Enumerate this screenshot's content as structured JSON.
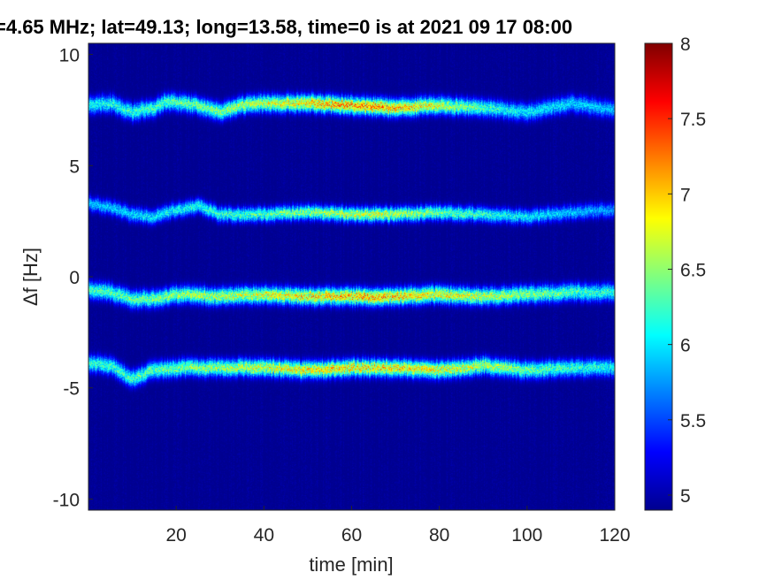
{
  "chart_data": {
    "type": "heatmap",
    "title": "=4.65 MHz;  lat=49.13; long=13.58, time=0 is at 2021 09 17 08:00",
    "xlabel": "time [min]",
    "ylabel": "Δf [Hz]",
    "xlim": [
      0,
      120
    ],
    "ylim": [
      -10.5,
      10.5
    ],
    "x_ticks": [
      20,
      40,
      60,
      80,
      100,
      120
    ],
    "x_tick_labels": [
      "20",
      "40",
      "60",
      "80",
      "100",
      "120"
    ],
    "y_ticks": [
      10,
      5,
      0,
      -5,
      -10
    ],
    "y_tick_labels": [
      "10",
      "5",
      "0",
      "-5",
      "-10"
    ],
    "colorbar": {
      "colormap": "jet",
      "clim": [
        4.9,
        8
      ],
      "ticks": [
        8,
        7.5,
        7,
        6.5,
        6,
        5.5,
        5
      ],
      "tick_labels": [
        "8",
        "7.5",
        "7",
        "6.5",
        "6",
        "5.5",
        "5"
      ]
    },
    "background_value": 4.95,
    "series": [
      {
        "center_hz": [
          [
            0,
            7.7
          ],
          [
            5,
            7.8
          ],
          [
            10,
            7.4
          ],
          [
            15,
            7.6
          ],
          [
            18,
            7.9
          ],
          [
            25,
            7.7
          ],
          [
            30,
            7.4
          ],
          [
            35,
            7.7
          ],
          [
            40,
            7.8
          ],
          [
            50,
            7.8
          ],
          [
            60,
            7.7
          ],
          [
            70,
            7.6
          ],
          [
            80,
            7.7
          ],
          [
            90,
            7.6
          ],
          [
            95,
            7.5
          ],
          [
            100,
            7.4
          ],
          [
            105,
            7.6
          ],
          [
            110,
            7.8
          ],
          [
            120,
            7.5
          ]
        ],
        "peak": [
          [
            0,
            6.4
          ],
          [
            20,
            6.7
          ],
          [
            40,
            7.1
          ],
          [
            55,
            7.6
          ],
          [
            65,
            7.7
          ],
          [
            75,
            7.4
          ],
          [
            85,
            6.9
          ],
          [
            95,
            6.4
          ],
          [
            120,
            6.1
          ]
        ],
        "width_hz": 0.35
      },
      {
        "center_hz": [
          [
            0,
            3.3
          ],
          [
            5,
            3.1
          ],
          [
            10,
            2.8
          ],
          [
            15,
            2.7
          ],
          [
            20,
            3.0
          ],
          [
            25,
            3.2
          ],
          [
            30,
            2.8
          ],
          [
            40,
            2.8
          ],
          [
            50,
            2.9
          ],
          [
            60,
            2.8
          ],
          [
            70,
            2.8
          ],
          [
            80,
            2.9
          ],
          [
            90,
            2.8
          ],
          [
            100,
            2.7
          ],
          [
            110,
            2.9
          ],
          [
            120,
            3.0
          ]
        ],
        "peak": [
          [
            0,
            6.1
          ],
          [
            20,
            6.4
          ],
          [
            40,
            6.7
          ],
          [
            55,
            7.0
          ],
          [
            65,
            7.2
          ],
          [
            80,
            6.8
          ],
          [
            95,
            6.4
          ],
          [
            120,
            6.0
          ]
        ],
        "width_hz": 0.3
      },
      {
        "center_hz": [
          [
            0,
            -0.6
          ],
          [
            5,
            -0.7
          ],
          [
            10,
            -1.0
          ],
          [
            15,
            -1.0
          ],
          [
            20,
            -0.8
          ],
          [
            30,
            -0.9
          ],
          [
            40,
            -0.8
          ],
          [
            50,
            -0.9
          ],
          [
            60,
            -0.9
          ],
          [
            70,
            -0.9
          ],
          [
            80,
            -0.8
          ],
          [
            90,
            -0.9
          ],
          [
            100,
            -0.8
          ],
          [
            110,
            -0.7
          ],
          [
            120,
            -0.7
          ]
        ],
        "peak": [
          [
            0,
            6.6
          ],
          [
            20,
            6.9
          ],
          [
            40,
            7.2
          ],
          [
            55,
            7.5
          ],
          [
            65,
            7.6
          ],
          [
            80,
            7.3
          ],
          [
            95,
            7.0
          ],
          [
            120,
            6.5
          ]
        ],
        "width_hz": 0.35
      },
      {
        "center_hz": [
          [
            0,
            -3.9
          ],
          [
            5,
            -4.0
          ],
          [
            10,
            -4.6
          ],
          [
            15,
            -4.2
          ],
          [
            20,
            -4.1
          ],
          [
            30,
            -4.1
          ],
          [
            40,
            -4.1
          ],
          [
            50,
            -4.2
          ],
          [
            60,
            -4.1
          ],
          [
            70,
            -4.1
          ],
          [
            80,
            -4.2
          ],
          [
            90,
            -4.0
          ],
          [
            100,
            -4.2
          ],
          [
            110,
            -4.1
          ],
          [
            120,
            -4.1
          ]
        ],
        "peak": [
          [
            0,
            6.5
          ],
          [
            20,
            6.8
          ],
          [
            40,
            7.2
          ],
          [
            55,
            7.4
          ],
          [
            70,
            7.4
          ],
          [
            85,
            7.2
          ],
          [
            100,
            6.8
          ],
          [
            120,
            6.4
          ]
        ],
        "width_hz": 0.35
      }
    ]
  }
}
